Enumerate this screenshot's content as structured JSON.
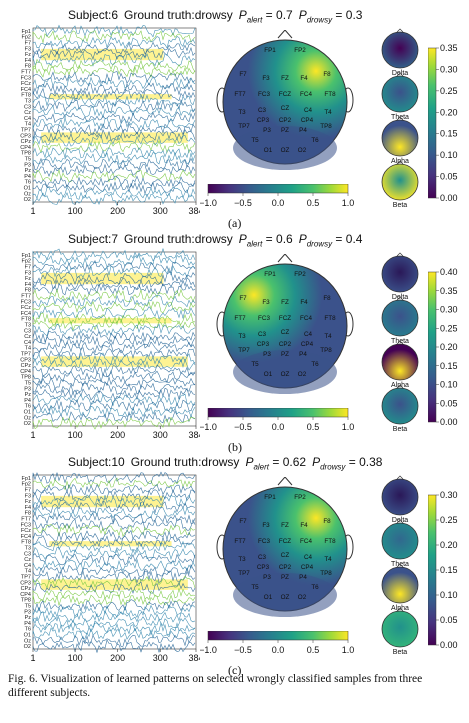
{
  "panels": [
    {
      "label": "(a)",
      "subject": "Subject:6",
      "truth": "Ground truth:drowsy",
      "p_alert": "0.7",
      "p_drowsy": "0.3",
      "cb_ticks": [
        "0.35",
        "0.30",
        "0.25",
        "0.20",
        "0.15",
        "0.10",
        "0.05",
        "0.00"
      ]
    },
    {
      "label": "(b)",
      "subject": "Subject:7",
      "truth": "Ground truth:drowsy",
      "p_alert": "0.6",
      "p_drowsy": "0.4",
      "cb_ticks": [
        "0.40",
        "0.35",
        "0.30",
        "0.25",
        "0.20",
        "0.15",
        "0.10",
        "0.05",
        "0.00"
      ]
    },
    {
      "label": "(c)",
      "subject": "Subject:10",
      "truth": "Ground truth:drowsy",
      "p_alert": "0.62",
      "p_drowsy": "0.38",
      "cb_ticks": [
        "0.30",
        "0.25",
        "0.20",
        "0.15",
        "0.10",
        "0.05",
        "0.00"
      ]
    }
  ],
  "p_alert_symbol": "P",
  "p_alert_sub": "alert",
  "p_drowsy_sub": "drowsy",
  "time_ticks": [
    "1",
    "100",
    "200",
    "300",
    "384"
  ],
  "channels": [
    "Fp1",
    "Fp2",
    "F7",
    "F3",
    "Fz",
    "F4",
    "F8",
    "FT7",
    "FC3",
    "FCz",
    "FC4",
    "FT8",
    "T3",
    "C3",
    "Cz",
    "C4",
    "T4",
    "TP7",
    "CP3",
    "CPz",
    "CP4",
    "TP8",
    "T5",
    "P3",
    "Pz",
    "P4",
    "T6",
    "O1",
    "Oz",
    "O2"
  ],
  "electrodes": [
    "FP1",
    "FP2",
    "F7",
    "F3",
    "FZ",
    "F4",
    "F8",
    "FT7",
    "FC3",
    "FCZ",
    "FC4",
    "FT8",
    "T3",
    "C3",
    "CZ",
    "C4",
    "T4",
    "CP3",
    "CP2",
    "CP4",
    "TP7",
    "P3",
    "PZ",
    "P4",
    "TP8",
    "T5",
    "T6",
    "O1",
    "OZ",
    "O2"
  ],
  "hcb_ticks": [
    "−1.0",
    "−0.5",
    "0.0",
    "0.5",
    "1.0"
  ],
  "bands": [
    "Delta",
    "Theta",
    "Alpha",
    "Beta"
  ],
  "caption": "Fig. 6. Visualization of learned patterns on selected wrongly classified samples from three different subjects.",
  "colors": {
    "viridis_low": "#440154",
    "viridis_mid": "#21918c",
    "viridis_high": "#fde725",
    "trace": "#2c6a9a"
  }
}
